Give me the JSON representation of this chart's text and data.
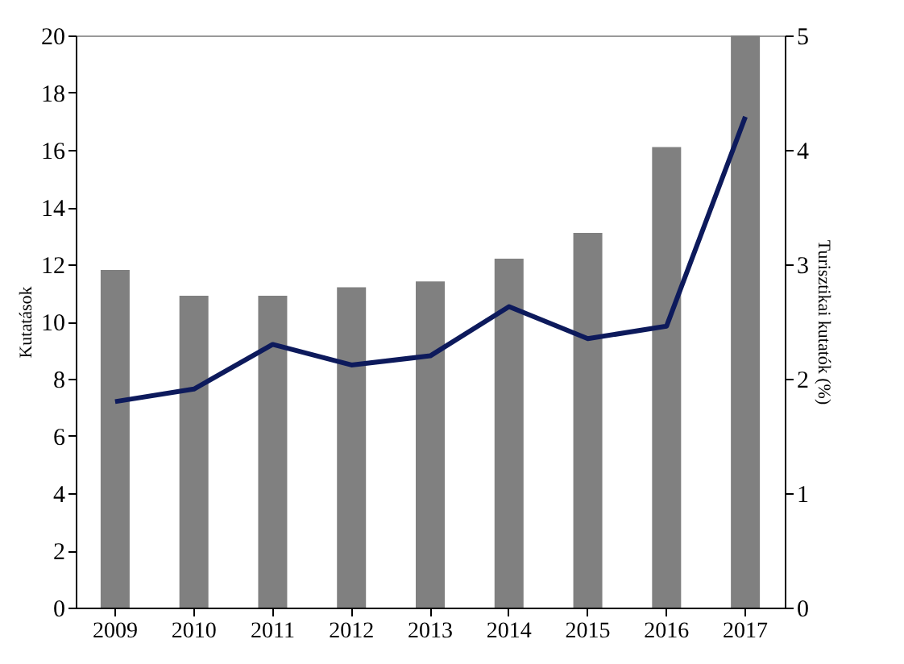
{
  "chart_data": {
    "type": "bar",
    "categories": [
      "2009",
      "2010",
      "2011",
      "2012",
      "2013",
      "2014",
      "2015",
      "2016",
      "2017"
    ],
    "ylabel": "Kutatások",
    "y2label": "Turisztikai kutatók (%)",
    "series": [
      {
        "color": "#808080",
        "values": [
          11.8,
          10.9,
          10.9,
          11.2,
          11.4,
          12.2,
          13.1,
          16.1,
          20
        ]
      },
      {
        "type": "line",
        "axis": "y2",
        "color": "#0d1a5c",
        "values": [
          1.8,
          1.91,
          2.3,
          2.12,
          2.2,
          2.63,
          2.35,
          2.46,
          4.29
        ]
      }
    ],
    "ylim": [
      0,
      20
    ],
    "yticks": [
      0,
      2,
      4,
      6,
      8,
      10,
      12,
      14,
      16,
      18,
      20
    ],
    "y2lim": [
      0,
      5
    ],
    "y2ticks": [
      0,
      1,
      2,
      3,
      4,
      5
    ],
    "grid": false
  }
}
